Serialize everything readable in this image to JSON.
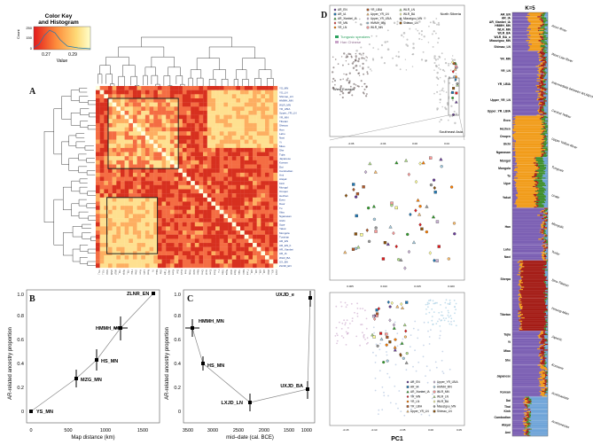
{
  "panels": {
    "A": "A",
    "B": "B",
    "C": "C",
    "D": "D"
  },
  "color_key": {
    "title_line1": "Color Key",
    "title_line2": "and Histogram",
    "y_axis_label": "Count",
    "y_ticks": [
      "0",
      "150",
      "250"
    ],
    "x_ticks": [
      "0.27",
      "0.29"
    ],
    "x_label": "Value"
  },
  "heatmap": {
    "row_labels": [
      "YS_MN",
      "YS_LN",
      "Shimao_LN",
      "HMMH_MN",
      "WLR_MN",
      "YR_LBIA",
      "Upper_YR_LN",
      "YR_MN",
      "Tibetan",
      "Sherpa",
      "Han",
      "Lahu",
      "Naxi",
      "Yi",
      "Miao",
      "She",
      "Tujia",
      "Japanese",
      "Korean",
      "Dai",
      "Cambodian",
      "Ami",
      "Atayal",
      "Kinh",
      "Mongol",
      "Oroqen",
      "Hezhen",
      "Even",
      "Daur",
      "Tu",
      "Xibo",
      "Nganasan",
      "Ulchi",
      "Ugur",
      "Yakut",
      "Mongola",
      "Tuvinian",
      "AR_EN",
      "AR_EN_b",
      "AR_Xianbei",
      "AR_IA",
      "WLR_BA",
      "UX_BA",
      "ZLNR_EN"
    ]
  },
  "chart_B": {
    "xlabel": "Map distance (km)",
    "ylabel": "AR-related ancestry proportion",
    "x_ticks": [
      "0",
      "500",
      "1000",
      "1500"
    ],
    "y_ticks": [
      "0",
      "0.2",
      "0.4",
      "0.6",
      "0.8",
      "1.0"
    ],
    "point_labels": [
      "YS_MN",
      "MZG_MN",
      "HS_MN",
      "HMMH_MN",
      "ZLNR_EN"
    ]
  },
  "chart_C": {
    "xlabel": "mid–date (cal. BCE)",
    "ylabel": "AR-related ancestry proportion",
    "x_ticks": [
      "3500",
      "3000",
      "2500",
      "2000",
      "1500",
      "1000"
    ],
    "y_ticks": [
      "0",
      "0.2",
      "0.4",
      "0.6",
      "0.8",
      "1.0"
    ],
    "point_labels": [
      "UXJD_e",
      "HMMH_MN",
      "HS_MN",
      "UXJD_BA",
      "LXJD_LN"
    ]
  },
  "pca_top": {
    "labels": {
      "north_siberia": "North Siberia",
      "west_eurasia": "West Eurasia",
      "southeast_asia": "Southeast Asia"
    },
    "legend_a": [
      "AR_EN",
      "AR_IA",
      "AR_Xianbei_IA",
      "YR_MN",
      "YR_LN",
      "YR_LBIA",
      "Upper_YR_LN",
      "Upper_YR_LBIA",
      "HMMH_MN",
      "WLR_MN",
      "WLR_LN",
      "WLR_BA",
      "Miaozigou_MN",
      "Shimao_LN"
    ],
    "tungusic": "Tungusic speakers",
    "han": "Han Chinese",
    "x_ticks": [
      "-0.06",
      "-0.04",
      "0.00",
      "0.04"
    ]
  },
  "pca_mid": {
    "x_ticks": [
      "0.005",
      "0.010",
      "0.015",
      "0.020"
    ]
  },
  "pca_bottom": {
    "legend": [
      "AR_EN",
      "AR_IA",
      "AR_Xianbei_IA",
      "YR_MN",
      "YR_LN",
      "YR_LBIA",
      "Upper_YR_LN",
      "Upper_YR_LBIA",
      "HMMH_MN",
      "WLR_MN",
      "WLR_LN",
      "WLR_BA",
      "Miaozigou_MN",
      "Shimao_LN"
    ],
    "x_ticks": [
      "-0.15",
      "-0.10",
      "-0.05",
      "0.00",
      "0.05"
    ],
    "xlabel": "PC1"
  },
  "admixture": {
    "title": "K=5",
    "groups": [
      {
        "name": "AR_EN",
        "h": 4
      },
      {
        "name": "AR_IA",
        "h": 4
      },
      {
        "name": "AR_Xianbei_IA",
        "h": 4
      },
      {
        "name": "HMMH_MN",
        "h": 4
      },
      {
        "name": "WLR_MN",
        "h": 4
      },
      {
        "name": "WLR_BA",
        "h": 4
      },
      {
        "name": "WLR_BA_o",
        "h": 4
      },
      {
        "name": "Miaozigou_MN",
        "h": 4
      },
      {
        "name": "Shimao_LN",
        "h": 9
      },
      {
        "name": "YR_MN",
        "h": 17
      },
      {
        "name": "YR_LN",
        "h": 8
      },
      {
        "name": "YR_LBIA",
        "h": 20
      },
      {
        "name": "Upper_YR_LN",
        "h": 14
      },
      {
        "name": "Upper_YR_LBIA",
        "h": 10
      },
      {
        "name": "Even",
        "h": 10
      },
      {
        "name": "Hezhen",
        "h": 8
      },
      {
        "name": "Oroqen",
        "h": 8
      },
      {
        "name": "Ulchi",
        "h": 8
      },
      {
        "name": "Nganasan",
        "h": 10
      },
      {
        "name": "Mongol",
        "h": 8
      },
      {
        "name": "Mongola",
        "h": 8
      },
      {
        "name": "Tu",
        "h": 8
      },
      {
        "name": "Ugur",
        "h": 8
      },
      {
        "name": "Yakut",
        "h": 22
      },
      {
        "name": "Han",
        "h": 40
      },
      {
        "name": "Lahu",
        "h": 8
      },
      {
        "name": "Naxi",
        "h": 8
      },
      {
        "name": "Sherpa",
        "h": 40
      },
      {
        "name": "Tibetan",
        "h": 35
      },
      {
        "name": "Tujia",
        "h": 8
      },
      {
        "name": "Yi",
        "h": 8
      },
      {
        "name": "Miao",
        "h": 10
      },
      {
        "name": "She",
        "h": 10
      },
      {
        "name": "Japanese",
        "h": 24
      },
      {
        "name": "Korean",
        "h": 10
      },
      {
        "name": "Dai",
        "h": 8
      },
      {
        "name": "Thai",
        "h": 5
      },
      {
        "name": "Kinh",
        "h": 5
      },
      {
        "name": "Cambodian",
        "h": 8
      },
      {
        "name": "Atayal",
        "h": 8
      },
      {
        "name": "Ami",
        "h": 8
      }
    ],
    "region_labels": [
      "Amur River",
      "West Liao River",
      "Intermediate between WLR&YR",
      "Central Yellow",
      "Upper Yellow River",
      "Tungusic",
      "Uralic",
      "Mongolic",
      "Turkic",
      "Sino-Tibetan",
      "Hmong-Mien",
      "Japonic",
      "Koreanic",
      "Austroasiatic",
      "Austronesian"
    ]
  },
  "colors": {
    "heat_hot": "#d7301f",
    "heat_mid": "#f46d43",
    "heat_warm": "#fdae61",
    "heat_light": "#fee090",
    "adm_purple": "#7b5fb3",
    "adm_orange": "#f19c1a",
    "adm_red": "#a41c16",
    "adm_green": "#3f8f2d",
    "adm_blue": "#6fa4d8"
  }
}
